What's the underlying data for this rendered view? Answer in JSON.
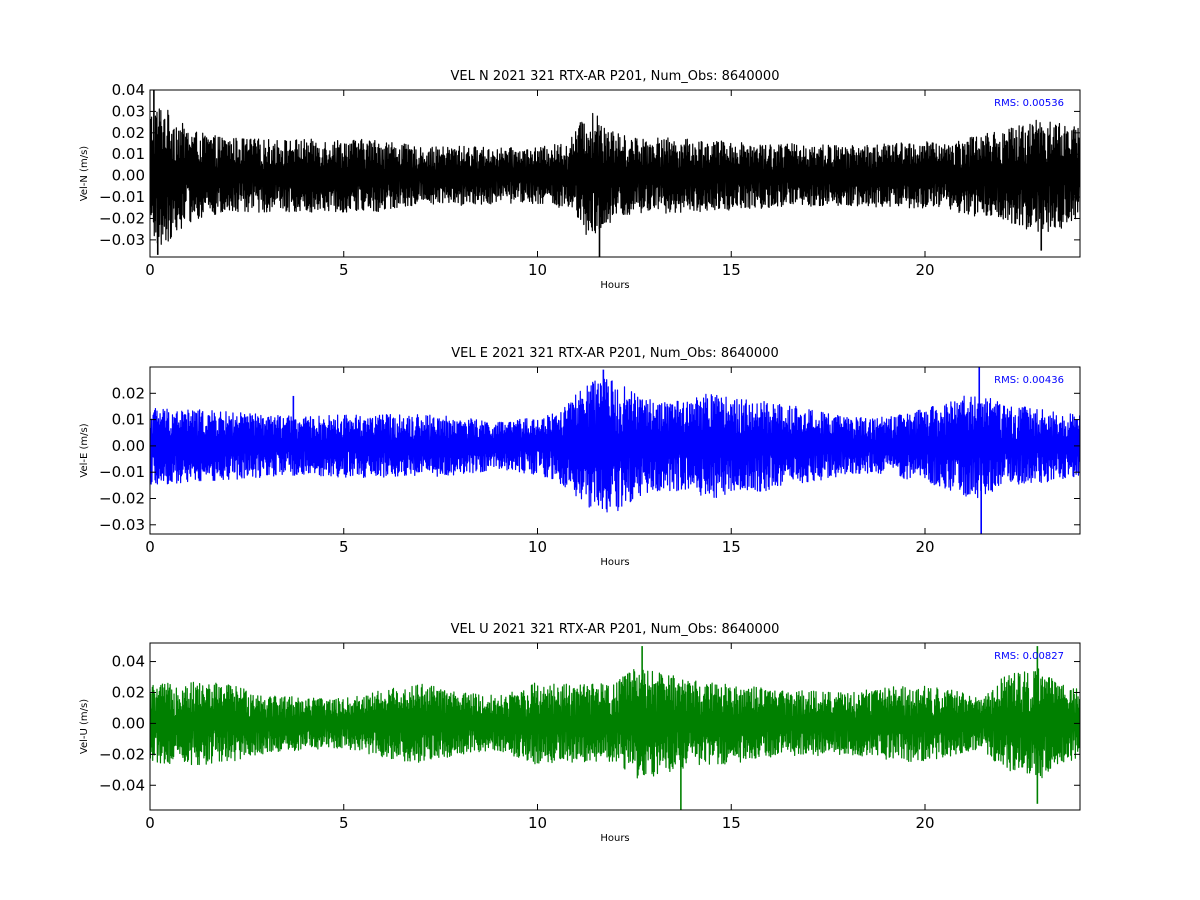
{
  "chart_data": [
    {
      "type": "line",
      "title": "VEL N 2021 321 RTX-AR  P201, Num_Obs: 8640000",
      "xlabel": "Hours",
      "ylabel": "Vel-N (m/s)",
      "xlim": [
        0,
        24
      ],
      "ylim": [
        -0.038,
        0.04
      ],
      "xticks": [
        0,
        5,
        10,
        15,
        20
      ],
      "xtick_labels": [
        "0",
        "5",
        "10",
        "15",
        "20"
      ],
      "yticks": [
        -0.03,
        -0.02,
        -0.01,
        0.0,
        0.01,
        0.02,
        0.03,
        0.04
      ],
      "ytick_labels": [
        "−0.03",
        "−0.02",
        "−0.01",
        "0.00",
        "0.01",
        "0.02",
        "0.03",
        "0.04"
      ],
      "annotation": "RMS:  0.00536",
      "annotation_color": "#0000ff",
      "series": [
        {
          "color": "#000000",
          "envelope_hours": [
            0,
            0.3,
            0.6,
            1,
            1.5,
            2,
            3,
            4,
            5,
            6,
            7,
            8,
            9,
            10,
            10.8,
            11.2,
            11.6,
            12,
            12.5,
            13,
            14,
            15,
            16,
            17,
            18,
            19,
            20,
            20.5,
            21,
            21.5,
            22,
            22.5,
            23,
            23.5,
            24
          ],
          "envelope_amplitude": [
            0.03,
            0.034,
            0.028,
            0.022,
            0.019,
            0.018,
            0.017,
            0.017,
            0.017,
            0.017,
            0.013,
            0.014,
            0.013,
            0.013,
            0.016,
            0.028,
            0.03,
            0.02,
            0.018,
            0.018,
            0.017,
            0.016,
            0.015,
            0.015,
            0.014,
            0.015,
            0.016,
            0.015,
            0.018,
            0.02,
            0.021,
            0.024,
            0.028,
            0.025,
            0.022
          ],
          "peaks": [
            [
              0.1,
              0.04
            ],
            [
              0.2,
              -0.037
            ],
            [
              11.6,
              -0.038
            ],
            [
              23.0,
              -0.035
            ]
          ]
        }
      ]
    },
    {
      "type": "line",
      "title": "VEL E 2021 321 RTX-AR  P201, Num_Obs: 8640000",
      "xlabel": "Hours",
      "ylabel": "Vel-E (m/s)",
      "xlim": [
        0,
        24
      ],
      "ylim": [
        -0.0335,
        0.03
      ],
      "xticks": [
        0,
        5,
        10,
        15,
        20
      ],
      "xtick_labels": [
        "0",
        "5",
        "10",
        "15",
        "20"
      ],
      "yticks": [
        -0.03,
        -0.02,
        -0.01,
        0.0,
        0.01,
        0.02
      ],
      "ytick_labels": [
        "−0.03",
        "−0.02",
        "−0.01",
        "0.00",
        "0.01",
        "0.02"
      ],
      "annotation": "RMS:  0.00436",
      "annotation_color": "#0000ff",
      "series": [
        {
          "color": "#0000ff",
          "envelope_hours": [
            0,
            1,
            2,
            3,
            4,
            5,
            6,
            7,
            8,
            9,
            10,
            10.5,
            11,
            11.5,
            12,
            12.5,
            13,
            14,
            14.5,
            15,
            16,
            17,
            18,
            19,
            20,
            21,
            21.5,
            22,
            23,
            24
          ],
          "envelope_amplitude": [
            0.015,
            0.014,
            0.013,
            0.012,
            0.011,
            0.012,
            0.012,
            0.012,
            0.011,
            0.009,
            0.011,
            0.013,
            0.02,
            0.025,
            0.026,
            0.02,
            0.017,
            0.018,
            0.021,
            0.018,
            0.017,
            0.014,
            0.011,
            0.011,
            0.014,
            0.019,
            0.02,
            0.016,
            0.014,
            0.012
          ],
          "peaks": [
            [
              11.7,
              0.029
            ],
            [
              21.4,
              0.03
            ],
            [
              21.45,
              -0.0335
            ],
            [
              3.7,
              0.019
            ]
          ]
        }
      ]
    },
    {
      "type": "line",
      "title": "VEL U 2021 321 RTX-AR  P201, Num_Obs: 8640000",
      "xlabel": "Hours",
      "ylabel": "Vel-U (m/s)",
      "xlim": [
        0,
        24
      ],
      "ylim": [
        -0.056,
        0.052
      ],
      "xticks": [
        0,
        5,
        10,
        15,
        20
      ],
      "xtick_labels": [
        "0",
        "5",
        "10",
        "15",
        "20"
      ],
      "yticks": [
        -0.04,
        -0.02,
        0.0,
        0.02,
        0.04
      ],
      "ytick_labels": [
        "−0.04",
        "−0.02",
        "0.00",
        "0.02",
        "0.04"
      ],
      "annotation": "RMS:  0.00827",
      "annotation_color": "#0000ff",
      "series": [
        {
          "color": "#008000",
          "envelope_hours": [
            0,
            1,
            2,
            3,
            4,
            5,
            6,
            7,
            8,
            9,
            9.5,
            10,
            11,
            12,
            12.5,
            13,
            14,
            15,
            16,
            17,
            18,
            19,
            20,
            21,
            21.5,
            22,
            22.5,
            23,
            23.5,
            24
          ],
          "envelope_amplitude": [
            0.025,
            0.027,
            0.026,
            0.019,
            0.017,
            0.016,
            0.022,
            0.026,
            0.02,
            0.018,
            0.022,
            0.027,
            0.025,
            0.026,
            0.036,
            0.034,
            0.028,
            0.026,
            0.022,
            0.021,
            0.02,
            0.024,
            0.025,
            0.02,
            0.017,
            0.03,
            0.034,
            0.036,
            0.025,
            0.024
          ],
          "peaks": [
            [
              12.7,
              0.05
            ],
            [
              13.7,
              -0.056
            ],
            [
              22.9,
              0.05
            ],
            [
              22.9,
              -0.052
            ]
          ]
        }
      ]
    }
  ]
}
